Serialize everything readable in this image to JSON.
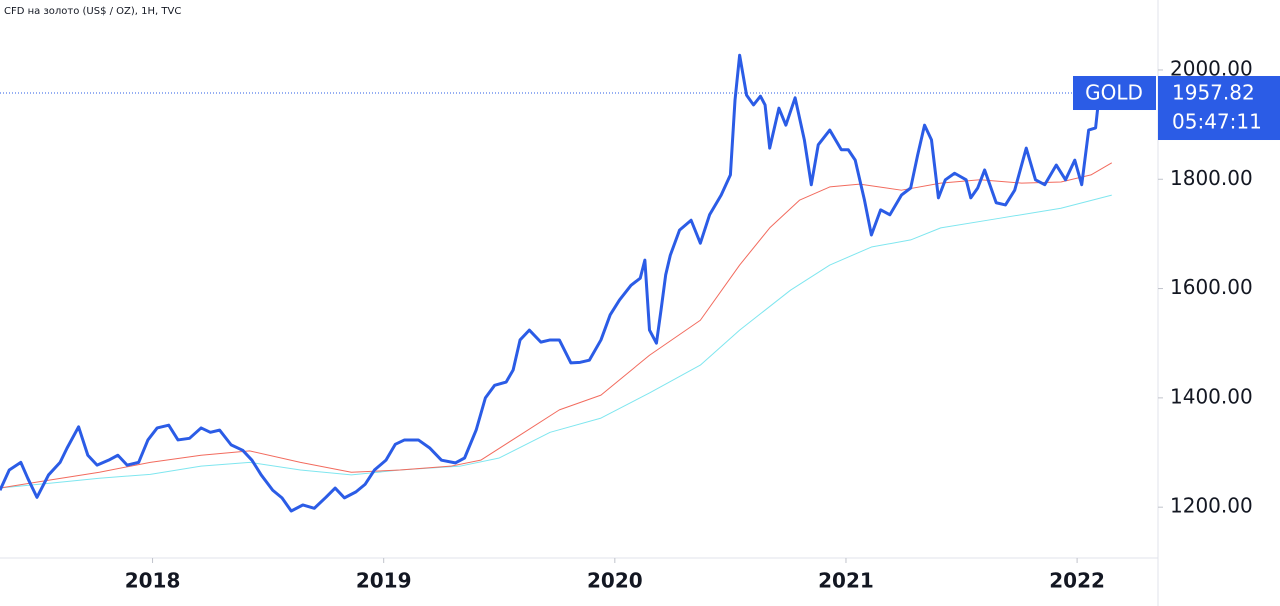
{
  "chart_data": {
    "type": "line",
    "title": "CFD на золото (US$ / OZ), 1H, TVC",
    "countdown": "05:47:11",
    "xlim": [
      2017.34,
      2022.35
    ],
    "xticks": [
      2018,
      2019,
      2020,
      2021,
      2022
    ],
    "ylim": [
      1107,
      2128
    ],
    "yticks": [
      {
        "value": 1200,
        "label": "1200.00"
      },
      {
        "value": 1400,
        "label": "1400.00"
      },
      {
        "value": 1600,
        "label": "1600.00"
      },
      {
        "value": 1800,
        "label": "1800.00"
      },
      {
        "value": 2000,
        "label": "2000.00"
      }
    ],
    "series": [
      {
        "name": "GOLD",
        "color": "#2b5ce6",
        "width": 3,
        "x": [
          2017.34,
          2017.38,
          2017.43,
          2017.46,
          2017.5,
          2017.55,
          2017.6,
          2017.63,
          2017.68,
          2017.72,
          2017.76,
          2017.81,
          2017.85,
          2017.89,
          2017.94,
          2017.98,
          2018.02,
          2018.07,
          2018.11,
          2018.16,
          2018.21,
          2018.25,
          2018.29,
          2018.34,
          2018.39,
          2018.43,
          2018.47,
          2018.52,
          2018.56,
          2018.6,
          2018.65,
          2018.7,
          2018.75,
          2018.79,
          2018.83,
          2018.88,
          2018.92,
          2018.96,
          2019.01,
          2019.05,
          2019.09,
          2019.15,
          2019.2,
          2019.25,
          2019.31,
          2019.35,
          2019.4,
          2019.44,
          2019.48,
          2019.53,
          2019.56,
          2019.59,
          2019.63,
          2019.68,
          2019.72,
          2019.76,
          2019.81,
          2019.85,
          2019.89,
          2019.94,
          2019.98,
          2020.02,
          2020.07,
          2020.11,
          2020.13,
          2020.15,
          2020.18,
          2020.2,
          2020.22,
          2020.24,
          2020.28,
          2020.33,
          2020.37,
          2020.41,
          2020.46,
          2020.5,
          2020.52,
          2020.54,
          2020.57,
          2020.6,
          2020.63,
          2020.65,
          2020.67,
          2020.71,
          2020.74,
          2020.78,
          2020.82,
          2020.85,
          2020.88,
          2020.93,
          2020.98,
          2021.01,
          2021.04,
          2021.08,
          2021.11,
          2021.15,
          2021.19,
          2021.24,
          2021.28,
          2021.31,
          2021.34,
          2021.37,
          2021.4,
          2021.43,
          2021.47,
          2021.52,
          2021.54,
          2021.57,
          2021.6,
          2021.65,
          2021.69,
          2021.73,
          2021.78,
          2021.82,
          2021.86,
          2021.91,
          2021.95,
          2021.99,
          2022.02,
          2022.05,
          2022.08,
          2022.1,
          2022.14
        ],
        "values": [
          1231,
          1268,
          1282,
          1253,
          1218,
          1259,
          1282,
          1308,
          1347,
          1295,
          1277,
          1286,
          1295,
          1277,
          1282,
          1323,
          1345,
          1350,
          1323,
          1326,
          1345,
          1337,
          1341,
          1314,
          1304,
          1286,
          1259,
          1231,
          1217,
          1193,
          1204,
          1198,
          1218,
          1235,
          1217,
          1228,
          1242,
          1268,
          1286,
          1315,
          1323,
          1323,
          1308,
          1286,
          1281,
          1290,
          1341,
          1400,
          1423,
          1429,
          1451,
          1506,
          1524,
          1502,
          1506,
          1506,
          1464,
          1465,
          1469,
          1506,
          1552,
          1579,
          1606,
          1619,
          1652,
          1524,
          1500,
          1561,
          1625,
          1661,
          1707,
          1725,
          1683,
          1735,
          1771,
          1808,
          1945,
          2027,
          1954,
          1936,
          1952,
          1936,
          1857,
          1930,
          1899,
          1949,
          1872,
          1790,
          1863,
          1890,
          1854,
          1854,
          1835,
          1762,
          1698,
          1744,
          1735,
          1771,
          1784,
          1844,
          1899,
          1872,
          1766,
          1799,
          1811,
          1799,
          1766,
          1784,
          1817,
          1757,
          1753,
          1780,
          1857,
          1799,
          1790,
          1826,
          1799,
          1835,
          1790,
          1890,
          1894,
          1973,
          1957.82
        ]
      },
      {
        "color": "#f26b5e",
        "width": 1,
        "x": [
          2017.34,
          2017.56,
          2017.77,
          2017.99,
          2018.21,
          2018.42,
          2018.64,
          2018.86,
          2019.07,
          2019.29,
          2019.42,
          2019.59,
          2019.76,
          2019.94,
          2020.15,
          2020.37,
          2020.54,
          2020.67,
          2020.8,
          2020.93,
          2021.06,
          2021.24,
          2021.41,
          2021.58,
          2021.76,
          2021.93,
          2022.06,
          2022.15
        ],
        "values": [
          1235,
          1250,
          1264,
          1282,
          1295,
          1303,
          1282,
          1264,
          1268,
          1275,
          1286,
          1332,
          1378,
          1405,
          1478,
          1542,
          1643,
          1711,
          1762,
          1786,
          1791,
          1780,
          1793,
          1799,
          1793,
          1795,
          1808,
          1830
        ]
      },
      {
        "color": "#7fe6ef",
        "width": 1,
        "x": [
          2017.34,
          2017.56,
          2017.77,
          2017.99,
          2018.21,
          2018.42,
          2018.64,
          2018.86,
          2019.07,
          2019.33,
          2019.5,
          2019.72,
          2019.94,
          2020.15,
          2020.37,
          2020.54,
          2020.76,
          2020.93,
          2021.11,
          2021.28,
          2021.41,
          2021.67,
          2021.93,
          2022.15
        ],
        "values": [
          1235,
          1244,
          1253,
          1260,
          1275,
          1282,
          1268,
          1259,
          1268,
          1275,
          1290,
          1337,
          1363,
          1409,
          1460,
          1524,
          1597,
          1643,
          1676,
          1689,
          1711,
          1729,
          1747,
          1771
        ]
      }
    ]
  }
}
